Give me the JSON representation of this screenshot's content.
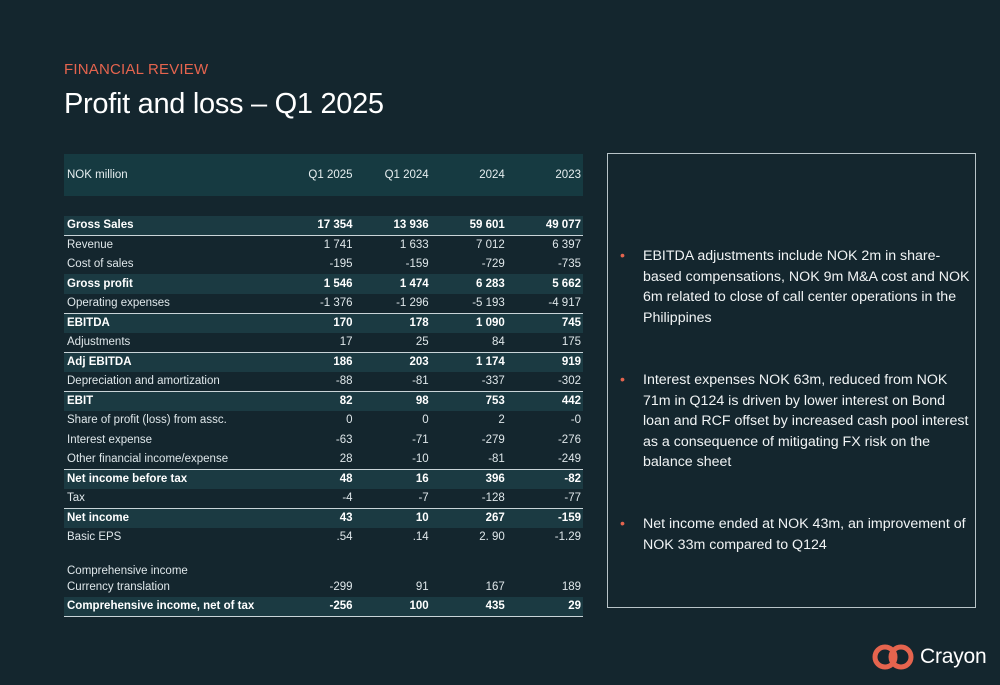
{
  "header": {
    "eyebrow": "FINANCIAL REVIEW",
    "title": "Profit and loss – Q1 2025"
  },
  "table": {
    "columns": [
      "NOK million",
      "Q1 2025",
      "Q1 2024",
      "2024",
      "2023"
    ],
    "rows": [
      {
        "label": "Gross Sales",
        "values": [
          "17 354",
          "13 936",
          "59 601",
          "49 077"
        ],
        "bold": true
      },
      {
        "label": "Revenue",
        "values": [
          "1 741",
          "1 633",
          "7 012",
          "6 397"
        ]
      },
      {
        "label": "Cost of sales",
        "values": [
          "-195",
          "-159",
          "-729",
          "-735"
        ]
      },
      {
        "label": "Gross profit",
        "values": [
          "1 546",
          "1 474",
          "6 283",
          "5 662"
        ],
        "bold": true
      },
      {
        "label": "Operating expenses",
        "values": [
          "-1 376",
          "-1 296",
          "-5 193",
          "-4 917"
        ]
      },
      {
        "label": "EBITDA",
        "values": [
          "170",
          "178",
          "1 090",
          "745"
        ],
        "bold": true
      },
      {
        "label": "Adjustments",
        "values": [
          "17",
          "25",
          "84",
          "175"
        ]
      },
      {
        "label": "Adj EBITDA",
        "values": [
          "186",
          "203",
          "1 174",
          "919"
        ],
        "bold": true
      },
      {
        "label": "Depreciation and amortization",
        "values": [
          "-88",
          "-81",
          "-337",
          "-302"
        ]
      },
      {
        "label": "EBIT",
        "values": [
          "82",
          "98",
          "753",
          "442"
        ],
        "bold": true
      },
      {
        "label": "Share of profit (loss) from assc.",
        "values": [
          "0",
          "0",
          "2",
          "-0"
        ]
      },
      {
        "label": "Interest expense",
        "values": [
          "-63",
          "-71",
          "-279",
          "-276"
        ]
      },
      {
        "label": "Other financial income/expense",
        "values": [
          "28",
          "-10",
          "-81",
          "-249"
        ]
      },
      {
        "label": "Net income before tax",
        "values": [
          "48",
          "16",
          "396",
          "-82"
        ],
        "bold": true
      },
      {
        "label": "Tax",
        "values": [
          "-4",
          "-7",
          "-128",
          "-77"
        ]
      },
      {
        "label": "Net income",
        "values": [
          "43",
          "10",
          "267",
          "-159"
        ],
        "bold": true
      },
      {
        "label": "Basic EPS",
        "values": [
          ".54",
          ".14",
          "2. 90",
          "-1.29"
        ]
      },
      {
        "label": "Comprehensive income",
        "values": [
          "",
          "",
          "",
          ""
        ]
      },
      {
        "label": "Currency translation",
        "values": [
          "-299",
          "91",
          "167",
          "189"
        ]
      },
      {
        "label": "Comprehensive income, net of tax",
        "values": [
          "-256",
          "100",
          "435",
          "29"
        ],
        "bold": true
      }
    ]
  },
  "notes": {
    "bullet_marker": "•",
    "items": [
      "EBITDA adjustments include NOK 2m in share-based compensations, NOK 9m M&A cost and NOK 6m related to close of call center operations in the Philippines",
      "Interest expenses NOK 63m, reduced from NOK 71m in Q124 is driven by lower interest on Bond loan and RCF offset by increased cash pool interest as a consequence of mitigating FX risk on the  balance sheet",
      "Net income ended at NOK 43m, an improvement of NOK 33m compared to Q124"
    ]
  },
  "logo": {
    "text": "Crayon",
    "icon": "crayon-logo-icon",
    "color": "#e5644e"
  }
}
